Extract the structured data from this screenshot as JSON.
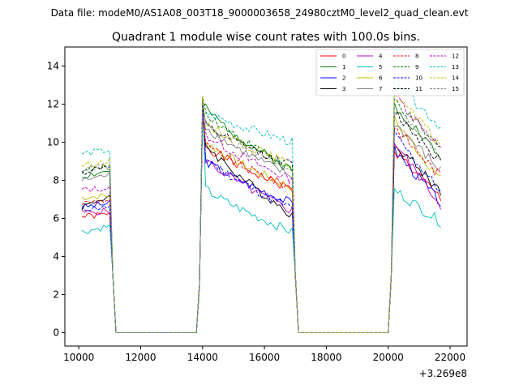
{
  "figure": {
    "suptitle": "Data file: modeM0/AS1A08_003T18_9000003658_24980cztM0_level2_quad_clean.evt"
  },
  "chart_data": {
    "type": "line",
    "title": "Quadrant 1 module wise count rates with 100.0s bins.",
    "xlabel": "",
    "ylabel": "",
    "x_offset_label": "+3.269e8",
    "xlim": [
      9550,
      22550
    ],
    "ylim": [
      -0.7,
      15.0
    ],
    "xticks": [
      10000,
      12000,
      14000,
      16000,
      18000,
      20000,
      22000
    ],
    "yticks": [
      0,
      2,
      4,
      6,
      8,
      10,
      12,
      14
    ],
    "grid": false,
    "legend": {
      "position": "top-right",
      "ncol": 4
    },
    "series": [
      {
        "name": "0",
        "color": "#ff0000",
        "dash": "solid",
        "seed": 1,
        "levels": [
          6.1,
          10.0,
          8.5,
          9.6,
          8.0
        ],
        "segments": [
          [
            10100,
            11000,
            6.1,
            6.2
          ],
          [
            14000,
            16900,
            10.0,
            7.5
          ],
          [
            20200,
            21700,
            9.6,
            7.0
          ]
        ]
      },
      {
        "name": "1",
        "color": "#008000",
        "dash": "solid",
        "seed": 2,
        "levels": [
          8.2,
          12.0,
          9.0,
          12.0,
          9.0
        ],
        "segments": [
          [
            10100,
            11000,
            8.2,
            8.5
          ],
          [
            14000,
            16900,
            12.0,
            8.5
          ],
          [
            20200,
            21700,
            12.0,
            9.2
          ]
        ]
      },
      {
        "name": "2",
        "color": "#0000ff",
        "dash": "solid",
        "seed": 3,
        "levels": [
          6.6,
          9.2,
          7.2,
          9.6,
          7.0
        ],
        "segments": [
          [
            10100,
            11000,
            6.6,
            6.8
          ],
          [
            14000,
            16900,
            9.2,
            6.8
          ],
          [
            20200,
            21700,
            9.6,
            6.8
          ]
        ]
      },
      {
        "name": "3",
        "color": "#000000",
        "dash": "solid",
        "seed": 4,
        "levels": [
          6.6,
          10.2,
          6.6,
          10.0,
          7.5
        ],
        "segments": [
          [
            10100,
            11000,
            6.6,
            7.2
          ],
          [
            14000,
            16900,
            10.2,
            6.2
          ],
          [
            20200,
            21700,
            10.0,
            7.4
          ]
        ]
      },
      {
        "name": "4",
        "color": "#bf00bf",
        "dash": "solid",
        "seed": 5,
        "levels": [
          6.3,
          9.3,
          6.8,
          10.0,
          6.8
        ],
        "segments": [
          [
            10100,
            11000,
            6.3,
            6.4
          ],
          [
            14000,
            16900,
            9.3,
            6.4
          ],
          [
            20200,
            21700,
            10.0,
            6.7
          ]
        ]
      },
      {
        "name": "5",
        "color": "#00bfbf",
        "dash": "solid",
        "seed": 6,
        "levels": [
          5.3,
          7.7,
          5.5,
          7.5,
          5.8
        ],
        "segments": [
          [
            10100,
            11000,
            5.3,
            5.6
          ],
          [
            14000,
            16900,
            7.7,
            5.3
          ],
          [
            20200,
            21700,
            7.5,
            5.8
          ]
        ]
      },
      {
        "name": "6",
        "color": "#bfbf00",
        "dash": "solid",
        "seed": 7,
        "levels": [
          7.1,
          10.2,
          7.5,
          11.2,
          8.0
        ],
        "segments": [
          [
            10100,
            11000,
            7.1,
            7.2
          ],
          [
            14000,
            16900,
            10.2,
            7.6
          ],
          [
            20200,
            21700,
            11.2,
            8.0
          ]
        ]
      },
      {
        "name": "7",
        "color": "#808080",
        "dash": "solid",
        "seed": 8,
        "levels": [
          8.0,
          11.0,
          8.0,
          11.0,
          8.5
        ],
        "segments": [
          [
            10100,
            11000,
            8.0,
            8.3
          ],
          [
            14000,
            16900,
            11.0,
            8.2
          ],
          [
            20200,
            21700,
            11.0,
            8.5
          ]
        ]
      },
      {
        "name": "8",
        "color": "#ff0000",
        "dash": "dashed",
        "seed": 9,
        "levels": [
          6.8,
          10.0,
          7.8,
          10.8,
          8.2
        ],
        "segments": [
          [
            10100,
            11000,
            6.8,
            7.0
          ],
          [
            14000,
            16900,
            10.0,
            7.6
          ],
          [
            20200,
            21700,
            10.8,
            8.2
          ]
        ]
      },
      {
        "name": "9",
        "color": "#008000",
        "dash": "dashed",
        "seed": 10,
        "levels": [
          8.5,
          11.8,
          8.6,
          12.2,
          9.5
        ],
        "segments": [
          [
            10100,
            11000,
            8.5,
            8.7
          ],
          [
            14000,
            16900,
            11.8,
            8.6
          ],
          [
            20200,
            21700,
            12.2,
            9.6
          ]
        ]
      },
      {
        "name": "10",
        "color": "#0000ff",
        "dash": "dashed",
        "seed": 11,
        "levels": [
          6.5,
          9.4,
          6.9,
          10.4,
          7.4
        ],
        "segments": [
          [
            10100,
            11000,
            6.5,
            6.6
          ],
          [
            14000,
            16900,
            9.4,
            6.5
          ],
          [
            20200,
            21700,
            10.4,
            7.4
          ]
        ]
      },
      {
        "name": "11",
        "color": "#000000",
        "dash": "dashed",
        "seed": 12,
        "levels": [
          8.4,
          11.0,
          8.8,
          11.6,
          9.0
        ],
        "segments": [
          [
            10100,
            11000,
            8.4,
            8.8
          ],
          [
            14000,
            16900,
            11.0,
            8.8
          ],
          [
            20200,
            21700,
            11.6,
            9.0
          ]
        ]
      },
      {
        "name": "12",
        "color": "#bf00bf",
        "dash": "dashed",
        "seed": 13,
        "levels": [
          7.5,
          10.6,
          8.0,
          12.5,
          9.7
        ],
        "segments": [
          [
            10100,
            11000,
            7.5,
            7.6
          ],
          [
            14000,
            16900,
            10.6,
            8.0
          ],
          [
            20200,
            21700,
            12.5,
            9.7
          ]
        ]
      },
      {
        "name": "13",
        "color": "#00bfbf",
        "dash": "dashed",
        "seed": 14,
        "levels": [
          9.4,
          11.7,
          10.0,
          13.2,
          10.8
        ],
        "segments": [
          [
            10100,
            11000,
            9.4,
            9.6
          ],
          [
            14000,
            16900,
            11.7,
            10.0
          ],
          [
            20200,
            21700,
            13.2,
            10.8
          ]
        ]
      },
      {
        "name": "14",
        "color": "#bfbf00",
        "dash": "dashed",
        "seed": 15,
        "levels": [
          8.8,
          11.2,
          8.8,
          12.6,
          9.8
        ],
        "segments": [
          [
            10100,
            11000,
            8.8,
            9.0
          ],
          [
            14000,
            16900,
            11.2,
            8.8
          ],
          [
            20200,
            21700,
            12.6,
            9.8
          ]
        ]
      },
      {
        "name": "15",
        "color": "#808080",
        "dash": "dashed",
        "seed": 16,
        "levels": [
          8.6,
          11.0,
          8.6,
          11.8,
          9.2
        ],
        "segments": [
          [
            10100,
            11000,
            8.6,
            8.8
          ],
          [
            14000,
            16900,
            11.0,
            8.6
          ],
          [
            20200,
            21700,
            11.8,
            9.2
          ]
        ]
      }
    ]
  }
}
